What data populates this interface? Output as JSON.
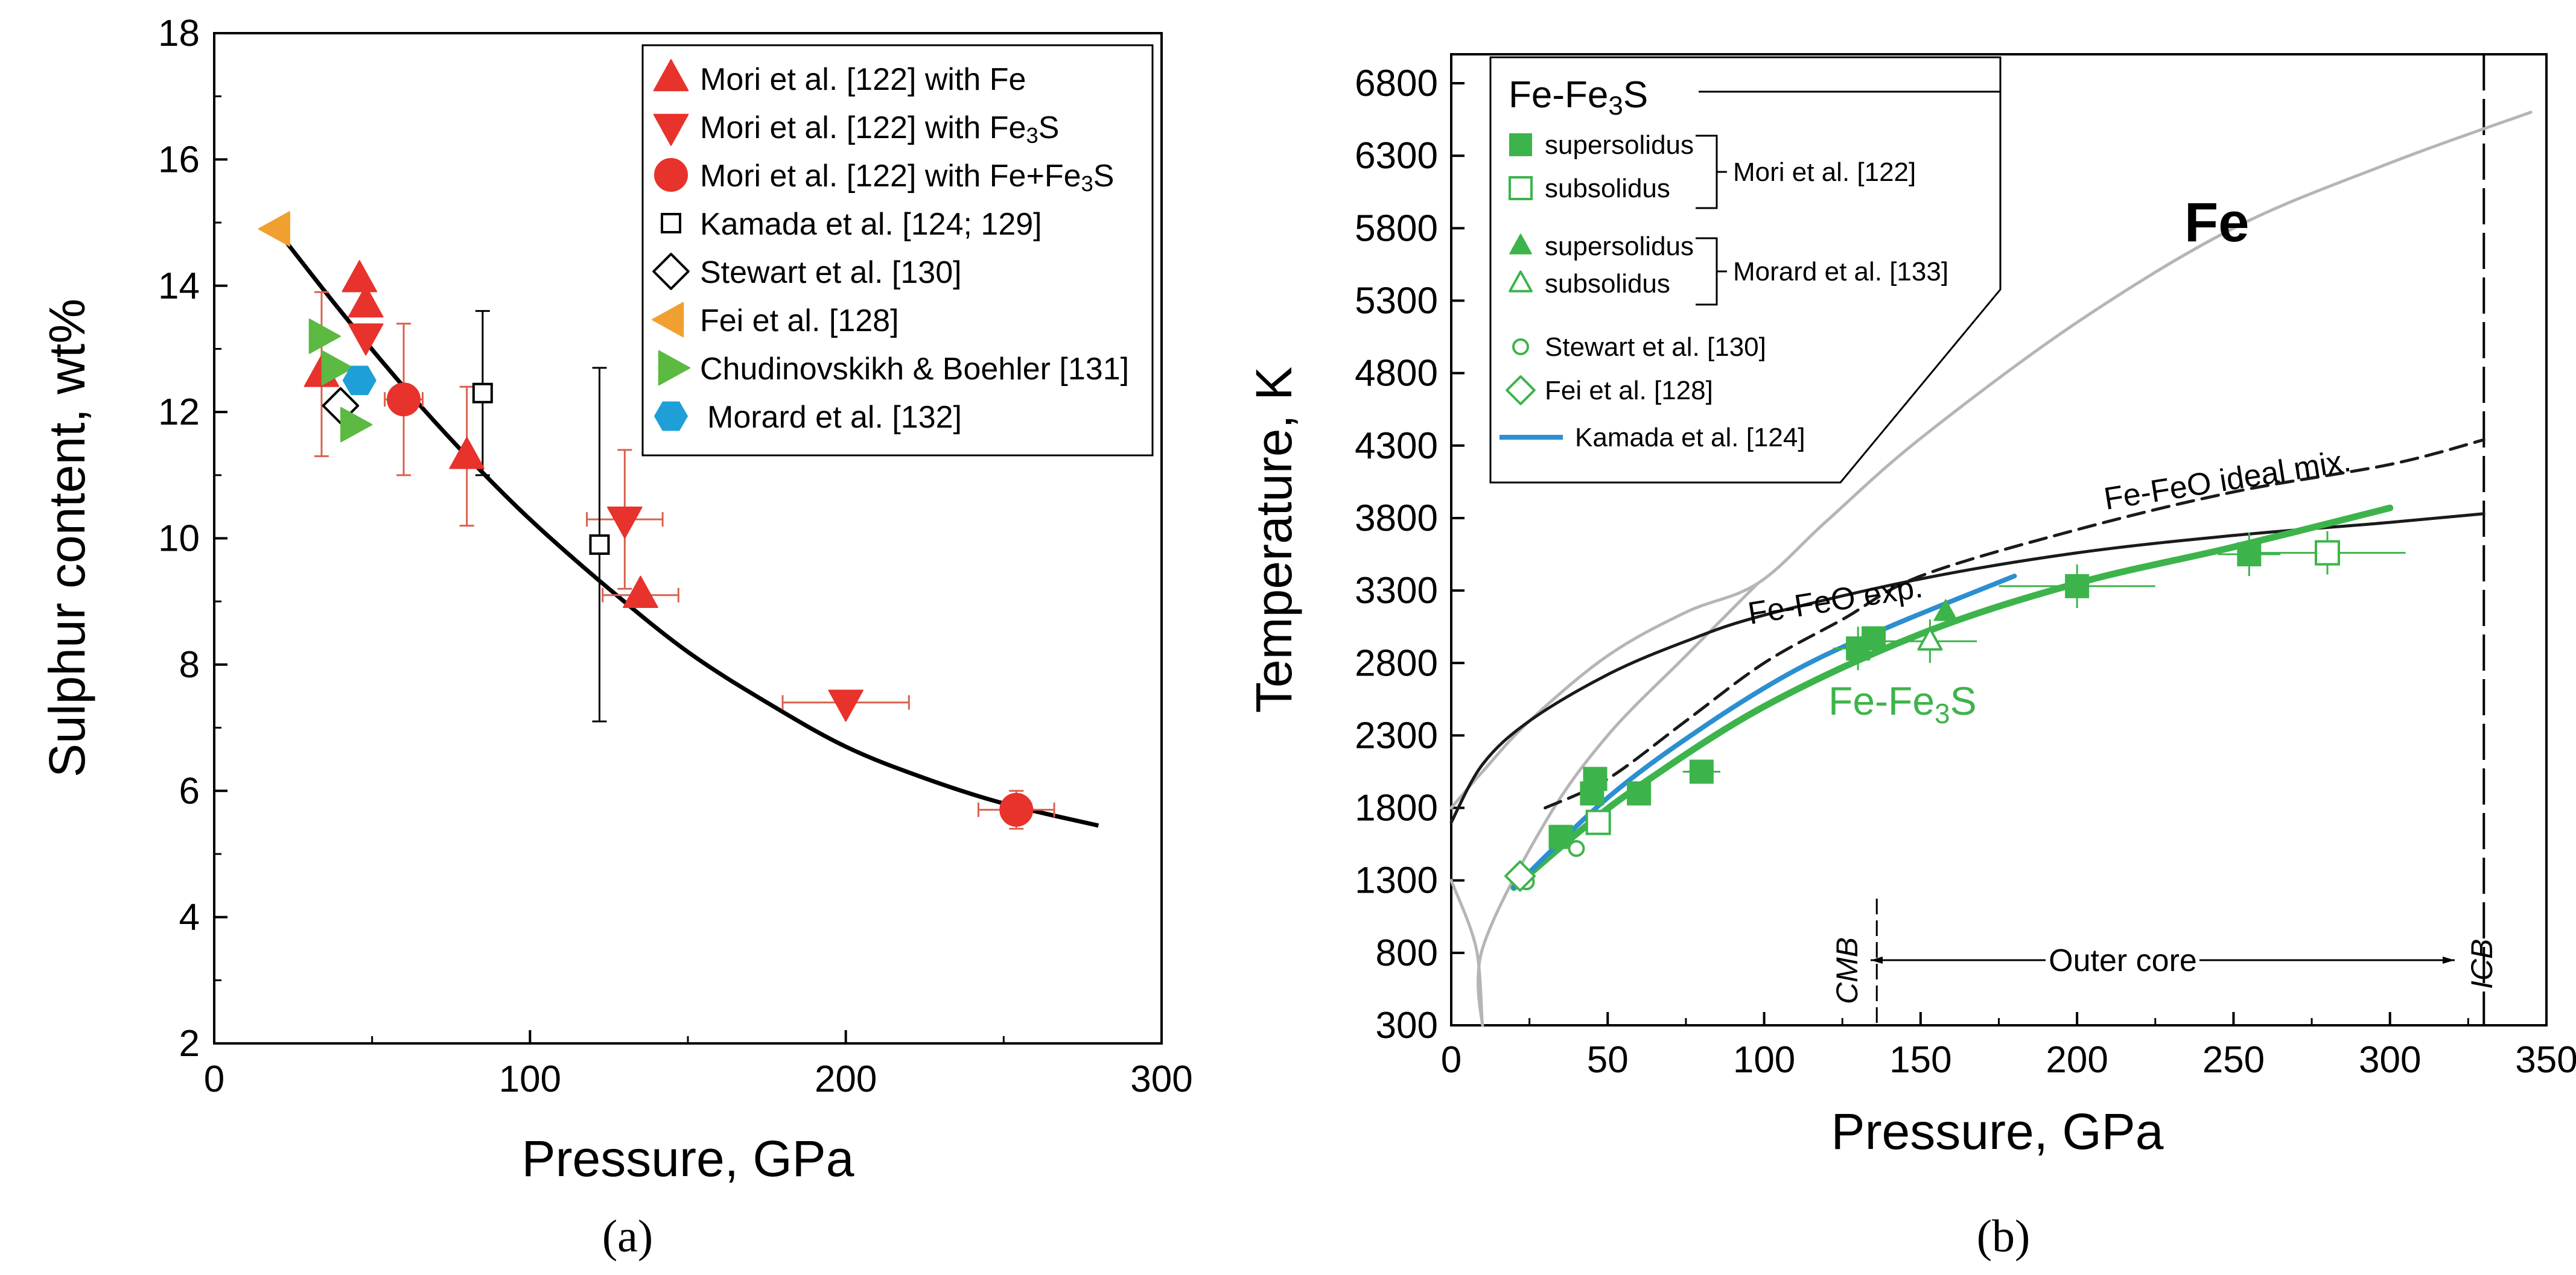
{
  "chart_data": [
    {
      "panel": "a",
      "type": "scatter",
      "caption": "(a)",
      "xlabel": "Pressure, GPa",
      "ylabel": "Sulphur content, wt%",
      "xlim": [
        0,
        300
      ],
      "ylim": [
        2,
        18
      ],
      "xticks": [
        0,
        100,
        200,
        300
      ],
      "yticks": [
        2,
        4,
        6,
        8,
        10,
        12,
        14,
        16,
        18
      ],
      "legend_position": "top-right",
      "series": [
        {
          "name": "Mori et al. [122] with Fe",
          "marker": "triangle-up",
          "color": "#e8322c",
          "filled": true,
          "points": [
            [
              34,
              12.6
            ],
            [
              46,
              14.1
            ],
            [
              48,
              13.7
            ],
            [
              80,
              11.3
            ],
            [
              135,
              9.1
            ]
          ],
          "errorbars": [
            {
              "x": 34,
              "y": 12.6,
              "y_err": 1.3
            },
            {
              "x": 80,
              "y": 11.3,
              "y_err": 1.1
            },
            {
              "x": 135,
              "y": 9.1,
              "x_err": 12
            }
          ]
        },
        {
          "name": "Mori et al. [122] with Fe3S",
          "marker": "triangle-down",
          "color": "#e8322c",
          "filled": true,
          "points": [
            [
              48,
              13.2
            ],
            [
              130,
              10.3
            ],
            [
              200,
              7.4
            ]
          ],
          "errorbars": [
            {
              "x": 130,
              "y": 10.3,
              "x_err": 12,
              "y_err": 1.1
            },
            {
              "x": 200,
              "y": 7.4,
              "x_err": 20
            }
          ]
        },
        {
          "name": "Mori et al. [122] with Fe+Fe3S",
          "marker": "circle",
          "color": "#e8322c",
          "filled": true,
          "points": [
            [
              60,
              12.2
            ],
            [
              254,
              5.7
            ]
          ],
          "errorbars": [
            {
              "x": 60,
              "y": 12.2,
              "x_err": 6,
              "y_err": 1.2
            },
            {
              "x": 254,
              "y": 5.7,
              "x_err": 12,
              "y_err": 0.3
            }
          ]
        },
        {
          "name": "Kamada et al. [124; 129]",
          "marker": "square",
          "color": "#000000",
          "filled": false,
          "points": [
            [
              85,
              12.3
            ],
            [
              122,
              9.9
            ]
          ],
          "errorbars": [
            {
              "x": 85,
              "y": 12.3,
              "y_err": 1.3
            },
            {
              "x": 122,
              "y": 9.9,
              "y_err": 2.8
            }
          ]
        },
        {
          "name": "Stewart et al. [130]",
          "marker": "diamond",
          "color": "#000000",
          "filled": false,
          "points": [
            [
              40,
              12.1
            ]
          ]
        },
        {
          "name": "Fei et al. [128]",
          "marker": "triangle-left",
          "color": "#f0a030",
          "filled": true,
          "points": [
            [
              20,
              14.9
            ]
          ]
        },
        {
          "name": "Chudinovskikh & Boehler [131]",
          "marker": "triangle-right",
          "color": "#5cb941",
          "filled": true,
          "points": [
            [
              34,
              13.2
            ],
            [
              38,
              12.7
            ],
            [
              44,
              11.8
            ]
          ]
        },
        {
          "name": "Morard et al. [132]",
          "marker": "hexagon",
          "color": "#1e9fd8",
          "filled": true,
          "points": [
            [
              46,
              12.5
            ]
          ]
        }
      ],
      "fit_curve": {
        "color": "#000000",
        "points": [
          [
            18,
            15.0
          ],
          [
            40,
            13.6
          ],
          [
            60,
            12.4
          ],
          [
            80,
            11.3
          ],
          [
            100,
            10.3
          ],
          [
            125,
            9.2
          ],
          [
            150,
            8.2
          ],
          [
            175,
            7.4
          ],
          [
            200,
            6.7
          ],
          [
            225,
            6.2
          ],
          [
            250,
            5.8
          ],
          [
            280,
            5.45
          ]
        ]
      }
    },
    {
      "panel": "b",
      "type": "line",
      "caption": "(b)",
      "xlabel": "Pressure, GPa",
      "ylabel": "Temperature, K",
      "xlim": [
        0,
        350
      ],
      "ylim": [
        300,
        7000
      ],
      "xticks": [
        0,
        50,
        100,
        150,
        200,
        250,
        300,
        350
      ],
      "yticks": [
        300,
        800,
        1300,
        1800,
        2300,
        2800,
        3300,
        3800,
        4300,
        4800,
        5300,
        5800,
        6300,
        6800
      ],
      "legend_position": "top-left",
      "legend_title": "Fe-Fe3S",
      "legend_groups": [
        {
          "label": "Mori et al. [122]",
          "entries": [
            "supersolidus",
            "subsolidus"
          ]
        },
        {
          "label": "Morard et al. [133]",
          "entries": [
            "supersolidus",
            "subsolidus"
          ]
        }
      ],
      "legend_entries": [
        "Stewart et al. [130]",
        "Fei et al. [128]",
        "Kamada et al. [124]"
      ],
      "annotations": {
        "fe": "Fe",
        "fefeo_ideal": "Fe-FeO ideal mix.",
        "fefeo_exp": "Fe-FeO exp.",
        "fefe3s": "Fe-Fe3S",
        "outer_core": "Outer core",
        "cmb": "CMB",
        "icb": "ICB"
      },
      "boundaries": {
        "CMB": 136,
        "ICB": 330
      },
      "series": [
        {
          "name": "Fe melting curve",
          "style": "solid",
          "color": "#b5b5b5",
          "points": [
            [
              0,
              1800
            ],
            [
              10,
              2050
            ],
            [
              25,
              2400
            ],
            [
              50,
              2850
            ],
            [
              75,
              3150
            ],
            [
              98,
              3350
            ],
            [
              120,
              3780
            ],
            [
              150,
              4350
            ],
            [
              200,
              5150
            ],
            [
              250,
              5800
            ],
            [
              300,
              6250
            ],
            [
              345,
              6600
            ]
          ]
        },
        {
          "name": "Fe subsolidus boundary",
          "style": "solid",
          "color": "#b5b5b5",
          "points": [
            [
              0,
              1300
            ],
            [
              8,
              830
            ],
            [
              10,
              300
            ],
            [
              10,
              830
            ],
            [
              30,
              1700
            ],
            [
              50,
              2300
            ],
            [
              75,
              2850
            ],
            [
              98,
              3350
            ]
          ]
        },
        {
          "name": "Fe-FeO exp.",
          "style": "solid",
          "color": "#1a1a1a",
          "points": [
            [
              0,
              1700
            ],
            [
              10,
              2100
            ],
            [
              25,
              2400
            ],
            [
              50,
              2720
            ],
            [
              75,
              2950
            ],
            [
              100,
              3130
            ],
            [
              150,
              3380
            ],
            [
              200,
              3560
            ],
            [
              250,
              3680
            ],
            [
              300,
              3770
            ],
            [
              330,
              3830
            ]
          ]
        },
        {
          "name": "Fe-FeO ideal mix.",
          "style": "dashed",
          "color": "#1a1a1a",
          "points": [
            [
              30,
              1800
            ],
            [
              50,
              2000
            ],
            [
              75,
              2400
            ],
            [
              100,
              2800
            ],
            [
              125,
              3100
            ],
            [
              150,
              3400
            ],
            [
              200,
              3720
            ],
            [
              250,
              3980
            ],
            [
              300,
              4170
            ],
            [
              330,
              4340
            ]
          ]
        },
        {
          "name": "Fe-Fe3S",
          "style": "solid",
          "color": "#3cb44b",
          "points": [
            [
              20,
              1250
            ],
            [
              40,
              1620
            ],
            [
              60,
              1950
            ],
            [
              100,
              2500
            ],
            [
              150,
              3000
            ],
            [
              200,
              3350
            ],
            [
              250,
              3600
            ],
            [
              300,
              3870
            ]
          ]
        },
        {
          "name": "Kamada et al. [124]",
          "style": "solid",
          "color": "#2b8fd0",
          "points": [
            [
              20,
              1250
            ],
            [
              50,
              1870
            ],
            [
              80,
              2350
            ],
            [
              110,
              2750
            ],
            [
              140,
              3050
            ],
            [
              180,
              3400
            ]
          ]
        }
      ],
      "points": {
        "mori_supersolidus": {
          "marker": "square",
          "color": "#3cb44b",
          "filled": true,
          "points": [
            [
              35,
              1600
            ],
            [
              45,
              1900
            ],
            [
              46,
              2000
            ],
            [
              60,
              1900
            ],
            [
              80,
              2050
            ],
            [
              130,
              2900
            ],
            [
              135,
              2970
            ],
            [
              200,
              3330
            ],
            [
              255,
              3550
            ]
          ],
          "errorbars": [
            {
              "x": 80,
              "y": 2050,
              "x_err": 6
            },
            {
              "x": 130,
              "y": 2900,
              "x_err": 8,
              "y_err": 150
            },
            {
              "x": 200,
              "y": 3330,
              "x_err": 25,
              "y_err": 150
            },
            {
              "x": 255,
              "y": 3550,
              "x_err": 10,
              "y_err": 150
            }
          ]
        },
        "mori_subsolidus": {
          "marker": "square",
          "color": "#3cb44b",
          "filled": false,
          "points": [
            [
              47,
              1700
            ],
            [
              280,
              3560
            ]
          ],
          "errorbars": [
            {
              "x": 280,
              "y": 3560,
              "x_err": 25,
              "y_err": 150
            }
          ]
        },
        "morard_supersolidus": {
          "marker": "triangle-up",
          "color": "#3cb44b",
          "filled": true,
          "points": [
            [
              158,
              3150
            ]
          ]
        },
        "morard_subsolidus": {
          "marker": "triangle-up",
          "color": "#3cb44b",
          "filled": false,
          "points": [
            [
              153,
              2950
            ]
          ],
          "errorbars": [
            {
              "x": 153,
              "y": 2950,
              "x_err": 15,
              "y_err": 150
            }
          ]
        },
        "stewart": {
          "marker": "circle",
          "color": "#3cb44b",
          "filled": false,
          "points": [
            [
              24,
              1290
            ],
            [
              40,
              1520
            ]
          ]
        },
        "fei": {
          "marker": "diamond",
          "color": "#3cb44b",
          "filled": false,
          "points": [
            [
              22,
              1330
            ]
          ]
        }
      }
    }
  ]
}
